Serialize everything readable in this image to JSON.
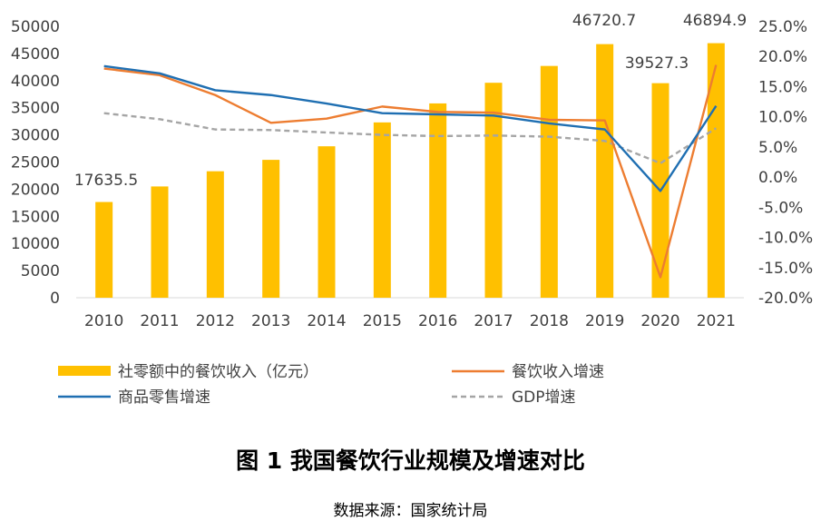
{
  "figure": {
    "title": "图 1 我国餐饮行业规模及增速对比",
    "source": "数据来源：国家统计局"
  },
  "chart_data": {
    "type": "bar",
    "categories": [
      "2010",
      "2011",
      "2012",
      "2013",
      "2014",
      "2015",
      "2016",
      "2017",
      "2018",
      "2019",
      "2020",
      "2021"
    ],
    "left_axis": {
      "ylim": [
        0,
        50000
      ],
      "ticks": [
        "0",
        "5000",
        "10000",
        "15000",
        "20000",
        "25000",
        "30000",
        "35000",
        "40000",
        "45000",
        "50000"
      ]
    },
    "right_axis": {
      "ylim": [
        -20,
        25
      ],
      "ticks": [
        "-20.0%",
        "-15.0%",
        "-10.0%",
        "-5.0%",
        "0.0%",
        "5.0%",
        "10.0%",
        "15.0%",
        "20.0%",
        "25.0%"
      ]
    },
    "bars": {
      "name": "社零额中的餐饮收入（亿元）",
      "color": "#FFC000",
      "values": [
        17635.5,
        20500,
        23300,
        25400,
        27900,
        32300,
        35800,
        39600,
        42700,
        46720.7,
        39527.3,
        46894.9
      ],
      "labels": [
        "17635.5",
        "",
        "",
        "",
        "",
        "",
        "",
        "",
        "",
        "46720.7",
        "39527.3",
        "46894.9"
      ]
    },
    "lines": [
      {
        "name": "餐饮收入增速",
        "color": "#ED7D31",
        "dash": "solid",
        "values": [
          18.0,
          16.9,
          13.6,
          9.0,
          9.7,
          11.7,
          10.8,
          10.7,
          9.5,
          9.4,
          -16.6,
          18.6
        ]
      },
      {
        "name": "商品零售增速",
        "color": "#1F6FB2",
        "dash": "solid",
        "values": [
          18.4,
          17.2,
          14.4,
          13.6,
          12.2,
          10.6,
          10.4,
          10.2,
          8.9,
          7.9,
          -2.3,
          11.8
        ]
      },
      {
        "name": "GDP增速",
        "color": "#A5A5A5",
        "dash": "dashed",
        "values": [
          10.6,
          9.6,
          7.9,
          7.8,
          7.4,
          7.0,
          6.8,
          6.9,
          6.7,
          6.0,
          2.3,
          8.1
        ]
      }
    ],
    "legend": {
      "placement": "bottom"
    },
    "grid": false
  }
}
